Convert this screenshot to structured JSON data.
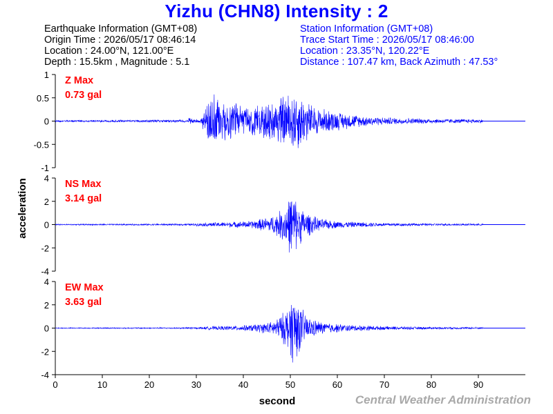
{
  "header": {
    "title": "Yizhu (CHN8) Intensity : 2"
  },
  "earthquake_info": {
    "heading": "Earthquake Information  (GMT+08)",
    "origin_time": "Origin Time : 2026/05/17 08:46:14",
    "location": "Location : 24.00°N, 121.00°E",
    "depth_magnitude": "Depth : 15.5km , Magnitude : 5.1"
  },
  "station_info": {
    "heading": "Station Information  (GMT+08)",
    "trace_start": "Trace Start Time : 2026/05/17 08:46:00",
    "location": "Location : 23.35°N, 120.22°E",
    "distance_azimuth": "Distance : 107.47 km, Back Azimuth : 47.53°"
  },
  "credit": "Central Weather Administration",
  "colors": {
    "trace": "#0000ff",
    "title": "#0000ff",
    "station_text": "#0000ff",
    "max_label": "#ff0000",
    "credit": "#a9a9a9"
  },
  "chart_data": {
    "type": "line",
    "xlabel": "second",
    "ylabel": "acceleration",
    "xlim": [
      0,
      100
    ],
    "x_ticks": [
      0,
      10,
      20,
      30,
      40,
      50,
      60,
      70,
      80,
      90
    ],
    "record_end": 91,
    "panels": [
      {
        "component": "Z",
        "label": "Z Max",
        "max_text": "0.73 gal",
        "peak": 0.73,
        "ylim": [
          -1,
          1
        ],
        "y_ticks": [
          1,
          0.5,
          0,
          -0.5,
          -1
        ],
        "envelope": [
          [
            0,
            0.02
          ],
          [
            28,
            0.03
          ],
          [
            28.5,
            0.08
          ],
          [
            29.5,
            0.03
          ],
          [
            31,
            0.05
          ],
          [
            32.5,
            0.5
          ],
          [
            33.5,
            0.62
          ],
          [
            35,
            0.45
          ],
          [
            38,
            0.38
          ],
          [
            41,
            0.3
          ],
          [
            43,
            0.32
          ],
          [
            46,
            0.45
          ],
          [
            48,
            0.55
          ],
          [
            49.5,
            0.6
          ],
          [
            51,
            0.68
          ],
          [
            53,
            0.5
          ],
          [
            55,
            0.32
          ],
          [
            60,
            0.2
          ],
          [
            65,
            0.12
          ],
          [
            70,
            0.08
          ],
          [
            80,
            0.05
          ],
          [
            91,
            0.04
          ]
        ]
      },
      {
        "component": "NS",
        "label": "NS Max",
        "max_text": "3.14 gal",
        "peak": 3.14,
        "ylim": [
          -4,
          4
        ],
        "y_ticks": [
          4,
          2,
          0,
          -2,
          -4
        ],
        "envelope": [
          [
            0,
            0.05
          ],
          [
            28,
            0.08
          ],
          [
            33,
            0.18
          ],
          [
            38,
            0.25
          ],
          [
            42,
            0.35
          ],
          [
            46,
            0.75
          ],
          [
            48,
            1.3
          ],
          [
            49.5,
            2.2
          ],
          [
            50.3,
            3.0
          ],
          [
            51.5,
            2.1
          ],
          [
            53,
            1.2
          ],
          [
            56,
            0.55
          ],
          [
            60,
            0.3
          ],
          [
            70,
            0.15
          ],
          [
            80,
            0.1
          ],
          [
            91,
            0.08
          ]
        ]
      },
      {
        "component": "EW",
        "label": "EW Max",
        "max_text": "3.63 gal",
        "peak": 3.63,
        "ylim": [
          -4,
          4
        ],
        "y_ticks": [
          4,
          2,
          0,
          -2,
          -4
        ],
        "envelope": [
          [
            0,
            0.04
          ],
          [
            28,
            0.06
          ],
          [
            28.5,
            0.12
          ],
          [
            29.5,
            0.06
          ],
          [
            33,
            0.15
          ],
          [
            38,
            0.2
          ],
          [
            42,
            0.3
          ],
          [
            46,
            0.55
          ],
          [
            48,
            1.1
          ],
          [
            49.5,
            1.9
          ],
          [
            50.8,
            3.4
          ],
          [
            52,
            2.0
          ],
          [
            54,
            0.9
          ],
          [
            57,
            0.5
          ],
          [
            62,
            0.3
          ],
          [
            70,
            0.16
          ],
          [
            80,
            0.1
          ],
          [
            91,
            0.09
          ]
        ]
      }
    ]
  }
}
